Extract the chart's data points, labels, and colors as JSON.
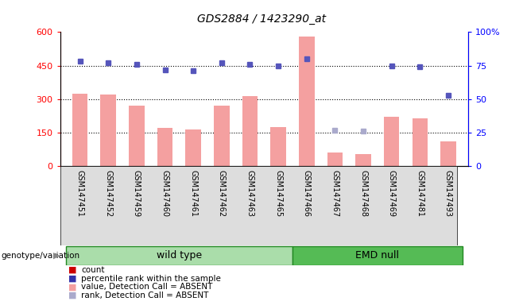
{
  "title": "GDS2884 / 1423290_at",
  "samples": [
    "GSM147451",
    "GSM147452",
    "GSM147459",
    "GSM147460",
    "GSM147461",
    "GSM147462",
    "GSM147463",
    "GSM147465",
    "GSM147466",
    "GSM147467",
    "GSM147468",
    "GSM147469",
    "GSM147481",
    "GSM147493"
  ],
  "wt_group": [
    "GSM147451",
    "GSM147452",
    "GSM147459",
    "GSM147460",
    "GSM147461",
    "GSM147462",
    "GSM147463",
    "GSM147465"
  ],
  "emd_group": [
    "GSM147466",
    "GSM147467",
    "GSM147468",
    "GSM147469",
    "GSM147481",
    "GSM147493"
  ],
  "bar_values": [
    325,
    320,
    270,
    170,
    165,
    270,
    315,
    175,
    580,
    60,
    55,
    220,
    215,
    110
  ],
  "dot_values": [
    78,
    77,
    76,
    72,
    71,
    77,
    76,
    75,
    80,
    27,
    26,
    75,
    74,
    53
  ],
  "absent_mask": [
    false,
    false,
    false,
    false,
    false,
    false,
    false,
    false,
    false,
    true,
    true,
    false,
    false,
    false
  ],
  "bar_color": "#f4a0a0",
  "dot_color_present": "#5555bb",
  "dot_color_absent": "#aaaacc",
  "ylim_left": [
    0,
    600
  ],
  "ylim_right": [
    0,
    100
  ],
  "yticks_left": [
    0,
    150,
    300,
    450,
    600
  ],
  "yticks_right": [
    0,
    25,
    50,
    75,
    100
  ],
  "ytick_labels_left": [
    "0",
    "150",
    "300",
    "450",
    "600"
  ],
  "ytick_labels_right": [
    "0",
    "25",
    "50",
    "75",
    "100%"
  ],
  "hlines": [
    150,
    300,
    450
  ],
  "wt_color": "#aaddaa",
  "emd_color": "#55bb55",
  "wt_label": "wild type",
  "emd_label": "EMD null",
  "group_row_label": "genotype/variation",
  "legend_items": [
    {
      "label": "count",
      "color": "#cc0000"
    },
    {
      "label": "percentile rank within the sample",
      "color": "#3333aa"
    },
    {
      "label": "value, Detection Call = ABSENT",
      "color": "#f4a0a0"
    },
    {
      "label": "rank, Detection Call = ABSENT",
      "color": "#aaaacc"
    }
  ]
}
